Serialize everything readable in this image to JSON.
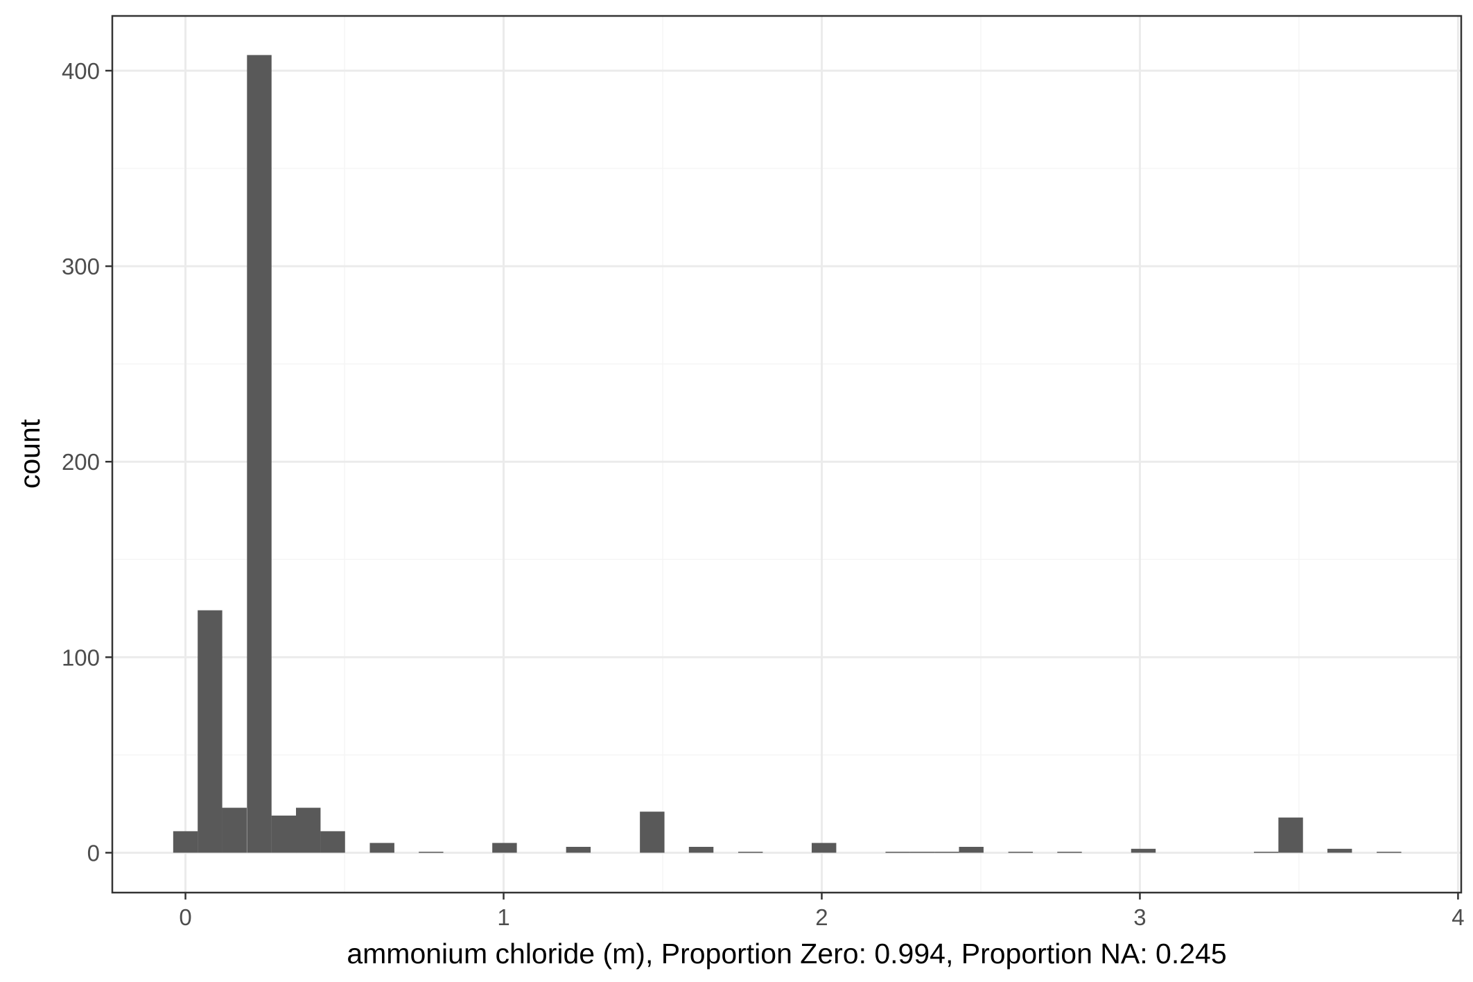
{
  "chart_data": {
    "type": "bar",
    "title": "",
    "xlabel": "ammonium chloride (m), Proportion Zero: 0.994, Proportion NA: 0.245",
    "ylabel": "count",
    "xlim": [
      -0.23,
      4.01
    ],
    "ylim": [
      -20.4,
      428
    ],
    "binwidth": 0.0772,
    "grid": true,
    "x_ticks": [
      0,
      1,
      2,
      3,
      4
    ],
    "y_ticks": [
      0,
      100,
      200,
      300,
      400
    ],
    "x_tick_labels": [
      "0",
      "1",
      "2",
      "3",
      "4"
    ],
    "y_tick_labels": [
      "0",
      "100",
      "200",
      "300",
      "400"
    ],
    "bins": [
      {
        "x": 0.0,
        "count": 11
      },
      {
        "x": 0.077,
        "count": 124
      },
      {
        "x": 0.154,
        "count": 23
      },
      {
        "x": 0.232,
        "count": 408
      },
      {
        "x": 0.309,
        "count": 19
      },
      {
        "x": 0.386,
        "count": 23
      },
      {
        "x": 0.463,
        "count": 11
      },
      {
        "x": 0.618,
        "count": 5
      },
      {
        "x": 0.772,
        "count": 0.5
      },
      {
        "x": 1.003,
        "count": 5
      },
      {
        "x": 1.235,
        "count": 3
      },
      {
        "x": 1.467,
        "count": 21
      },
      {
        "x": 1.621,
        "count": 3
      },
      {
        "x": 1.776,
        "count": 0.5
      },
      {
        "x": 2.007,
        "count": 5
      },
      {
        "x": 2.239,
        "count": 0.5
      },
      {
        "x": 2.316,
        "count": 0.5
      },
      {
        "x": 2.393,
        "count": 0.5
      },
      {
        "x": 2.47,
        "count": 3
      },
      {
        "x": 2.625,
        "count": 0.5
      },
      {
        "x": 2.779,
        "count": 0.5
      },
      {
        "x": 3.011,
        "count": 2
      },
      {
        "x": 3.397,
        "count": 0.5
      },
      {
        "x": 3.474,
        "count": 18
      },
      {
        "x": 3.628,
        "count": 2
      },
      {
        "x": 3.783,
        "count": 0.5
      }
    ],
    "colors": {
      "bar": "#595959",
      "grid_major": "#ebebeb",
      "grid_minor": "#f5f5f5",
      "panel_border": "#333333",
      "tick_label": "#4d4d4d"
    }
  }
}
